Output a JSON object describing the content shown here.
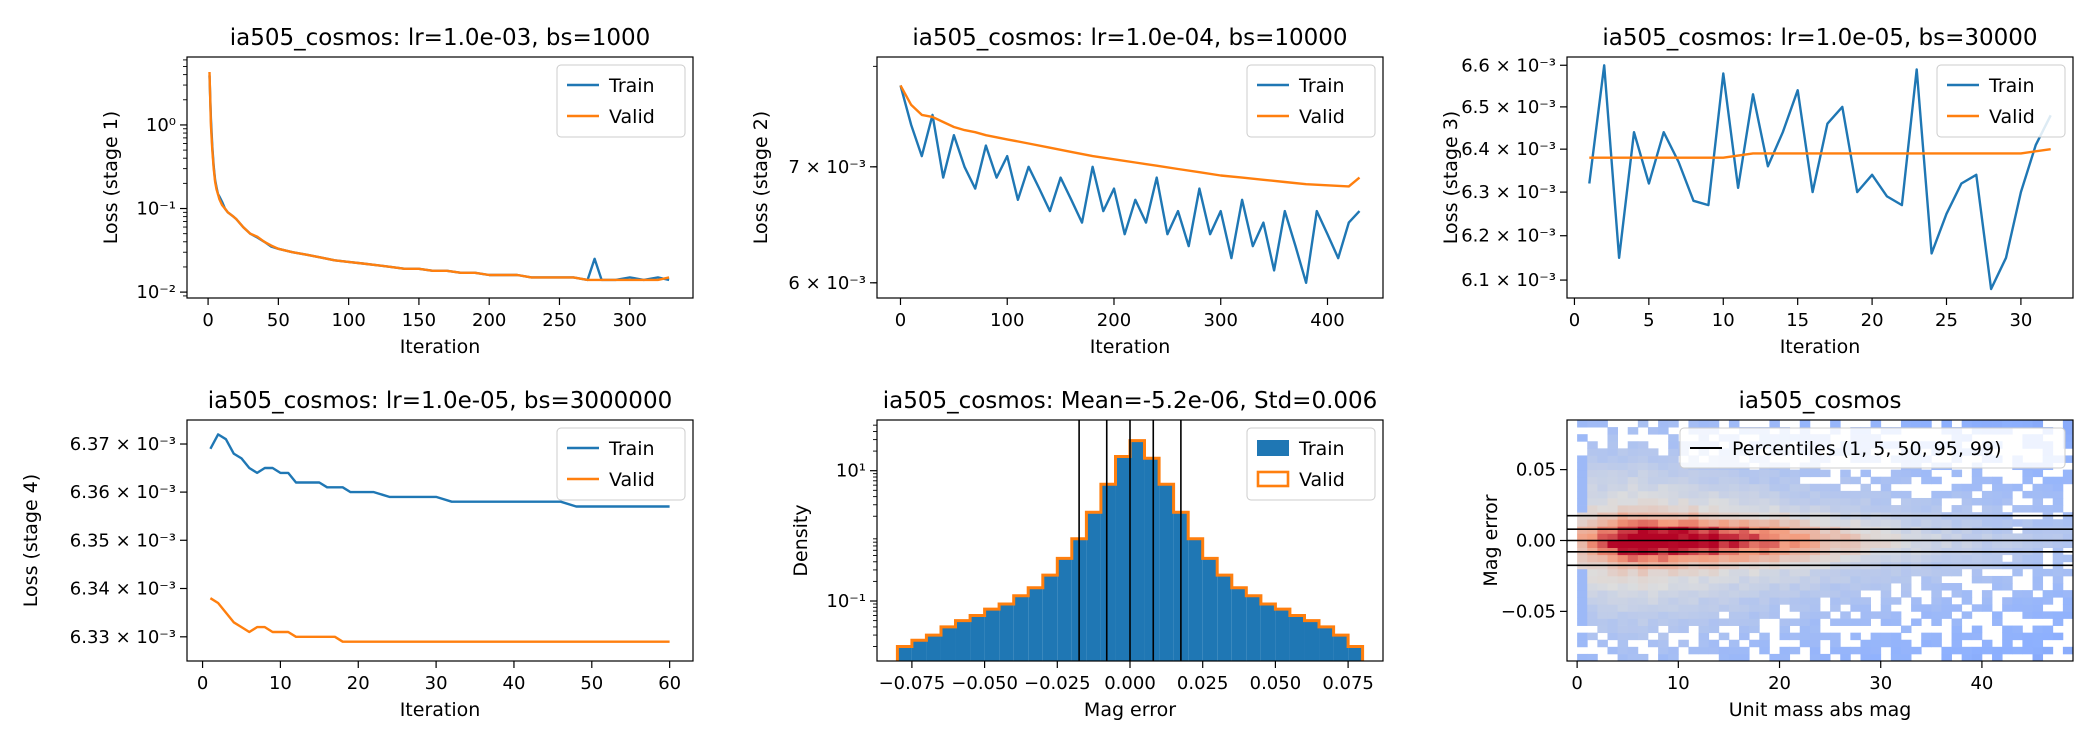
{
  "colors": {
    "train": "#1f77b4",
    "valid": "#ff7f0e",
    "axis": "#000000"
  },
  "chart_data": [
    {
      "id": "p1",
      "type": "line",
      "title": "ia505_cosmos: lr=1.0e-03, bs=1000",
      "xlabel": "Iteration",
      "ylabel": "Loss (stage 1)",
      "xscale": "linear",
      "yscale": "log",
      "xlim": [
        -15,
        345
      ],
      "ylim": [
        0.0085,
        6.5
      ],
      "xticks": [
        0,
        50,
        100,
        150,
        200,
        250,
        300
      ],
      "xtick_labels": [
        "0",
        "50",
        "100",
        "150",
        "200",
        "250",
        "300"
      ],
      "yticks": [
        0.01,
        0.1,
        1
      ],
      "ytick_labels": [
        "10⁻²",
        "10⁻¹",
        "10⁰"
      ],
      "legend": "top-right",
      "series": [
        {
          "name": "Train",
          "x": [
            1,
            2,
            3,
            4,
            5,
            6,
            7,
            8,
            10,
            12,
            14,
            16,
            18,
            20,
            25,
            30,
            35,
            40,
            45,
            50,
            60,
            70,
            80,
            90,
            100,
            110,
            120,
            130,
            140,
            150,
            160,
            170,
            180,
            190,
            200,
            210,
            220,
            230,
            240,
            250,
            260,
            270,
            275,
            280,
            290,
            300,
            310,
            320,
            328
          ],
          "y": [
            3.9,
            1.2,
            0.55,
            0.32,
            0.22,
            0.18,
            0.15,
            0.14,
            0.12,
            0.1,
            0.09,
            0.085,
            0.08,
            0.075,
            0.06,
            0.05,
            0.045,
            0.04,
            0.035,
            0.033,
            0.03,
            0.028,
            0.026,
            0.024,
            0.023,
            0.022,
            0.021,
            0.02,
            0.019,
            0.019,
            0.018,
            0.018,
            0.017,
            0.017,
            0.016,
            0.016,
            0.016,
            0.015,
            0.015,
            0.015,
            0.015,
            0.014,
            0.025,
            0.014,
            0.014,
            0.015,
            0.014,
            0.015,
            0.014
          ]
        },
        {
          "name": "Valid",
          "x": [
            1,
            2,
            3,
            4,
            5,
            6,
            7,
            8,
            10,
            12,
            14,
            16,
            18,
            20,
            25,
            30,
            35,
            40,
            45,
            50,
            60,
            70,
            80,
            90,
            100,
            110,
            120,
            130,
            140,
            150,
            160,
            170,
            180,
            190,
            200,
            210,
            220,
            230,
            240,
            250,
            260,
            270,
            280,
            290,
            300,
            310,
            320,
            328
          ],
          "y": [
            4.3,
            1.0,
            0.5,
            0.3,
            0.21,
            0.17,
            0.15,
            0.13,
            0.11,
            0.1,
            0.09,
            0.085,
            0.08,
            0.075,
            0.06,
            0.05,
            0.046,
            0.04,
            0.036,
            0.033,
            0.03,
            0.028,
            0.026,
            0.024,
            0.023,
            0.022,
            0.021,
            0.02,
            0.019,
            0.019,
            0.018,
            0.018,
            0.017,
            0.017,
            0.016,
            0.016,
            0.016,
            0.015,
            0.015,
            0.015,
            0.015,
            0.014,
            0.014,
            0.014,
            0.014,
            0.014,
            0.014,
            0.015
          ]
        }
      ]
    },
    {
      "id": "p2",
      "type": "line",
      "title": "ia505_cosmos: lr=1.0e-04, bs=10000",
      "xlabel": "Iteration",
      "ylabel": "Loss (stage 2)",
      "xscale": "linear",
      "yscale": "log",
      "xlim": [
        -22,
        452
      ],
      "ylim": [
        0.00588,
        0.0081
      ],
      "xticks": [
        0,
        100,
        200,
        300,
        400
      ],
      "xtick_labels": [
        "0",
        "100",
        "200",
        "300",
        "400"
      ],
      "yticks": [
        0.006,
        0.007
      ],
      "ytick_labels": [
        "6 × 10⁻³",
        "7 × 10⁻³"
      ],
      "legend": "top-right",
      "series": [
        {
          "name": "Train",
          "x": [
            0,
            10,
            20,
            30,
            40,
            50,
            60,
            70,
            80,
            90,
            100,
            110,
            120,
            130,
            140,
            150,
            160,
            170,
            180,
            190,
            200,
            210,
            220,
            230,
            240,
            250,
            260,
            270,
            280,
            290,
            300,
            310,
            320,
            330,
            340,
            350,
            360,
            370,
            380,
            390,
            400,
            410,
            420,
            430
          ],
          "y": [
            0.0078,
            0.0074,
            0.0071,
            0.0075,
            0.0069,
            0.0073,
            0.007,
            0.0068,
            0.0072,
            0.0069,
            0.0071,
            0.0067,
            0.007,
            0.0068,
            0.0066,
            0.0069,
            0.0067,
            0.0065,
            0.007,
            0.0066,
            0.0068,
            0.0064,
            0.0067,
            0.0065,
            0.0069,
            0.0064,
            0.0066,
            0.0063,
            0.0068,
            0.0064,
            0.0066,
            0.0062,
            0.0067,
            0.0063,
            0.0065,
            0.0061,
            0.0066,
            0.0063,
            0.006,
            0.0066,
            0.0064,
            0.0062,
            0.0065,
            0.0066
          ]
        },
        {
          "name": "Valid",
          "x": [
            0,
            10,
            20,
            30,
            40,
            50,
            60,
            70,
            80,
            90,
            100,
            120,
            140,
            160,
            180,
            200,
            220,
            240,
            260,
            280,
            300,
            320,
            340,
            360,
            380,
            400,
            420,
            430
          ],
          "y": [
            0.0078,
            0.0076,
            0.0075,
            0.00748,
            0.00743,
            0.00738,
            0.00735,
            0.00733,
            0.0073,
            0.00728,
            0.00726,
            0.00722,
            0.00718,
            0.00714,
            0.0071,
            0.00707,
            0.00704,
            0.00701,
            0.00698,
            0.00695,
            0.00692,
            0.0069,
            0.00688,
            0.00686,
            0.00684,
            0.00683,
            0.00682,
            0.0069
          ]
        }
      ]
    },
    {
      "id": "p3",
      "type": "line",
      "title": "ia505_cosmos: lr=1.0e-05, bs=30000",
      "xlabel": "Iteration",
      "ylabel": "Loss (stage 3)",
      "xscale": "linear",
      "yscale": "log",
      "xlim": [
        -0.5,
        33.5
      ],
      "ylim": [
        0.00606,
        0.00662
      ],
      "xticks": [
        0,
        5,
        10,
        15,
        20,
        25,
        30
      ],
      "xtick_labels": [
        "0",
        "5",
        "10",
        "15",
        "20",
        "25",
        "30"
      ],
      "yticks": [
        0.0061,
        0.0062,
        0.0063,
        0.0064,
        0.0065,
        0.0066
      ],
      "ytick_labels": [
        "6.1 × 10⁻³",
        "6.2 × 10⁻³",
        "6.3 × 10⁻³",
        "6.4 × 10⁻³",
        "6.5 × 10⁻³",
        "6.6 × 10⁻³"
      ],
      "legend": "top-right",
      "series": [
        {
          "name": "Train",
          "x": [
            1,
            2,
            3,
            4,
            5,
            6,
            7,
            8,
            9,
            10,
            11,
            12,
            13,
            14,
            15,
            16,
            17,
            18,
            19,
            20,
            21,
            22,
            23,
            24,
            25,
            26,
            27,
            28,
            29,
            30,
            31,
            32
          ],
          "y": [
            0.00632,
            0.0066,
            0.00615,
            0.00644,
            0.00632,
            0.00644,
            0.00637,
            0.00628,
            0.00627,
            0.00658,
            0.00631,
            0.00653,
            0.00636,
            0.00644,
            0.00654,
            0.0063,
            0.00646,
            0.0065,
            0.0063,
            0.00634,
            0.00629,
            0.00627,
            0.00659,
            0.00616,
            0.00625,
            0.00632,
            0.00634,
            0.00608,
            0.00615,
            0.0063,
            0.00641,
            0.00648
          ]
        },
        {
          "name": "Valid",
          "x": [
            1,
            2,
            4,
            6,
            8,
            10,
            12,
            14,
            16,
            18,
            20,
            22,
            24,
            26,
            28,
            30,
            32
          ],
          "y": [
            0.00638,
            0.00638,
            0.00638,
            0.00638,
            0.00638,
            0.00638,
            0.00639,
            0.00639,
            0.00639,
            0.00639,
            0.00639,
            0.00639,
            0.00639,
            0.00639,
            0.00639,
            0.00639,
            0.0064
          ]
        }
      ]
    },
    {
      "id": "p4",
      "type": "line",
      "title": "ia505_cosmos: lr=1.0e-05, bs=3000000",
      "xlabel": "Iteration",
      "ylabel": "Loss (stage 4)",
      "xscale": "linear",
      "yscale": "log",
      "xlim": [
        -2,
        63
      ],
      "ylim": [
        0.006325,
        0.006375
      ],
      "xticks": [
        0,
        10,
        20,
        30,
        40,
        50,
        60
      ],
      "xtick_labels": [
        "0",
        "10",
        "20",
        "30",
        "40",
        "50",
        "60"
      ],
      "yticks": [
        0.00633,
        0.00634,
        0.00635,
        0.00636,
        0.00637
      ],
      "ytick_labels": [
        "6.33 × 10⁻³",
        "6.34 × 10⁻³",
        "6.35 × 10⁻³",
        "6.36 × 10⁻³",
        "6.37 × 10⁻³"
      ],
      "legend": "top-right",
      "series": [
        {
          "name": "Train",
          "x": [
            1,
            2,
            3,
            4,
            5,
            6,
            7,
            8,
            9,
            10,
            11,
            12,
            13,
            14,
            15,
            16,
            17,
            18,
            19,
            20,
            22,
            24,
            26,
            28,
            30,
            32,
            34,
            36,
            38,
            40,
            42,
            44,
            46,
            48,
            50,
            52,
            54,
            56,
            58,
            60
          ],
          "y": [
            0.006369,
            0.006372,
            0.006371,
            0.006368,
            0.006367,
            0.006365,
            0.006364,
            0.006365,
            0.006365,
            0.006364,
            0.006364,
            0.006362,
            0.006362,
            0.006362,
            0.006362,
            0.006361,
            0.006361,
            0.006361,
            0.00636,
            0.00636,
            0.00636,
            0.006359,
            0.006359,
            0.006359,
            0.006359,
            0.006358,
            0.006358,
            0.006358,
            0.006358,
            0.006358,
            0.006358,
            0.006358,
            0.006358,
            0.006357,
            0.006357,
            0.006357,
            0.006357,
            0.006357,
            0.006357,
            0.006357
          ]
        },
        {
          "name": "Valid",
          "x": [
            1,
            2,
            3,
            4,
            5,
            6,
            7,
            8,
            9,
            10,
            11,
            12,
            13,
            14,
            15,
            16,
            17,
            18,
            19,
            20,
            22,
            24,
            26,
            28,
            30,
            32,
            34,
            36,
            38,
            40,
            42,
            44,
            46,
            48,
            50,
            52,
            54,
            56,
            58,
            60
          ],
          "y": [
            0.006338,
            0.006337,
            0.006335,
            0.006333,
            0.006332,
            0.006331,
            0.006332,
            0.006332,
            0.006331,
            0.006331,
            0.006331,
            0.00633,
            0.00633,
            0.00633,
            0.00633,
            0.00633,
            0.00633,
            0.006329,
            0.006329,
            0.006329,
            0.006329,
            0.006329,
            0.006329,
            0.006329,
            0.006329,
            0.006329,
            0.006329,
            0.006329,
            0.006329,
            0.006329,
            0.006329,
            0.006329,
            0.006329,
            0.006329,
            0.006329,
            0.006329,
            0.006329,
            0.006329,
            0.006329,
            0.006329
          ]
        }
      ]
    },
    {
      "id": "p5",
      "type": "histogram",
      "title": "ia505_cosmos: Mean=-5.2e-06, Std=0.006",
      "xlabel": "Mag error",
      "ylabel": "Density",
      "xscale": "linear",
      "yscale": "log",
      "xlim": [
        -0.087,
        0.087
      ],
      "ylim": [
        0.012,
        60
      ],
      "xticks": [
        -0.075,
        -0.05,
        -0.025,
        0,
        0.025,
        0.05,
        0.075
      ],
      "xtick_labels": [
        "−0.075",
        "−0.050",
        "−0.025",
        "0.000",
        "0.025",
        "0.050",
        "0.075"
      ],
      "yticks": [
        0.1,
        10
      ],
      "ytick_labels": [
        "10⁻¹",
        "10¹"
      ],
      "legend": "top-right",
      "bin_edges": [
        -0.08,
        -0.075,
        -0.07,
        -0.065,
        -0.06,
        -0.055,
        -0.05,
        -0.045,
        -0.04,
        -0.035,
        -0.03,
        -0.025,
        -0.02,
        -0.015,
        -0.01,
        -0.005,
        0,
        0.005,
        0.01,
        0.015,
        0.02,
        0.025,
        0.03,
        0.035,
        0.04,
        0.045,
        0.05,
        0.055,
        0.06,
        0.065,
        0.07,
        0.075,
        0.08
      ],
      "series": [
        {
          "name": "Train",
          "style": "filled",
          "density": [
            0.02,
            0.025,
            0.03,
            0.04,
            0.05,
            0.06,
            0.075,
            0.09,
            0.12,
            0.16,
            0.25,
            0.45,
            0.9,
            2.2,
            6,
            16,
            28,
            15,
            6,
            2.2,
            0.9,
            0.45,
            0.25,
            0.16,
            0.12,
            0.09,
            0.075,
            0.06,
            0.05,
            0.04,
            0.03,
            0.02
          ]
        },
        {
          "name": "Valid",
          "style": "step",
          "density": [
            0.02,
            0.025,
            0.03,
            0.04,
            0.05,
            0.06,
            0.075,
            0.09,
            0.12,
            0.16,
            0.25,
            0.45,
            0.9,
            2.3,
            6.2,
            16.5,
            29,
            15.5,
            6.2,
            2.3,
            0.9,
            0.45,
            0.25,
            0.16,
            0.12,
            0.09,
            0.075,
            0.06,
            0.05,
            0.04,
            0.03,
            0.02
          ]
        }
      ],
      "vlines": [
        -0.0175,
        -0.008,
        0.0,
        0.008,
        0.0175
      ]
    },
    {
      "id": "p6",
      "type": "heatmap",
      "title": "ia505_cosmos",
      "xlabel": "Unit mass abs mag",
      "ylabel": "Mag error",
      "xscale": "linear",
      "yscale": "linear",
      "xlim": [
        -1,
        49
      ],
      "ylim": [
        -0.085,
        0.085
      ],
      "xticks": [
        0,
        10,
        20,
        30,
        40
      ],
      "xtick_labels": [
        "0",
        "10",
        "20",
        "30",
        "40"
      ],
      "yticks": [
        -0.05,
        0,
        0.05
      ],
      "ytick_labels": [
        "−0.05",
        "0.00",
        "0.05"
      ],
      "colormap": "coolwarm (blue = low count, red = high count)",
      "peak": {
        "x": 6,
        "y": 0
      },
      "legend": "top-right",
      "series": [
        {
          "name": "Percentiles (1, 5, 50, 95, 99)",
          "hlines": [
            -0.0175,
            -0.008,
            0.0,
            0.008,
            0.0175
          ]
        }
      ]
    }
  ]
}
